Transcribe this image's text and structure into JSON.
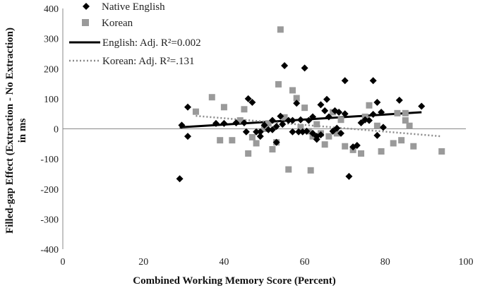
{
  "chart_data": {
    "type": "scatter",
    "title": "",
    "xlabel": "Combined Working Memory Score (Percent)",
    "ylabel_line1": "Filled-gap Effect (Extraction - No Extraction)",
    "ylabel_line2": "in ms",
    "xlim": [
      0,
      100
    ],
    "ylim": [
      -400,
      400
    ],
    "x_ticks": [
      0,
      20,
      40,
      60,
      80,
      100
    ],
    "y_ticks": [
      -400,
      -300,
      -200,
      -100,
      0,
      100,
      200,
      300,
      400
    ],
    "grid": false,
    "legend_position": "top-left",
    "series": [
      {
        "name": "Native English",
        "marker": "diamond",
        "color": "#000000",
        "points": [
          [
            29,
            -166
          ],
          [
            29.5,
            12
          ],
          [
            31,
            -25
          ],
          [
            31,
            72
          ],
          [
            38,
            18
          ],
          [
            40,
            18
          ],
          [
            43,
            20
          ],
          [
            45,
            20
          ],
          [
            45.5,
            -10
          ],
          [
            46,
            100
          ],
          [
            47,
            88
          ],
          [
            48,
            -10
          ],
          [
            49,
            -25
          ],
          [
            49,
            -10
          ],
          [
            50,
            12
          ],
          [
            51,
            -3
          ],
          [
            52,
            -3
          ],
          [
            52,
            28
          ],
          [
            53,
            -45
          ],
          [
            53,
            8
          ],
          [
            54,
            42
          ],
          [
            54.5,
            15
          ],
          [
            55,
            210
          ],
          [
            56,
            28
          ],
          [
            57,
            -10
          ],
          [
            57,
            28
          ],
          [
            58,
            85
          ],
          [
            58.5,
            -10
          ],
          [
            59,
            30
          ],
          [
            59.5,
            -10
          ],
          [
            60,
            202
          ],
          [
            60.5,
            -8
          ],
          [
            61,
            28
          ],
          [
            62,
            40
          ],
          [
            62,
            -15
          ],
          [
            63,
            -25
          ],
          [
            63,
            -35
          ],
          [
            64,
            80
          ],
          [
            64,
            -20
          ],
          [
            65,
            60
          ],
          [
            65.5,
            98
          ],
          [
            66,
            40
          ],
          [
            67,
            -8
          ],
          [
            67.5,
            60
          ],
          [
            68,
            2
          ],
          [
            68.5,
            55
          ],
          [
            69,
            -15
          ],
          [
            70,
            50
          ],
          [
            70,
            160
          ],
          [
            71,
            -158
          ],
          [
            72,
            -60
          ],
          [
            73,
            -55
          ],
          [
            74,
            20
          ],
          [
            75,
            30
          ],
          [
            76,
            28
          ],
          [
            77,
            160
          ],
          [
            77,
            48
          ],
          [
            78,
            88
          ],
          [
            78,
            -22
          ],
          [
            79,
            55
          ],
          [
            79.5,
            5
          ],
          [
            83.5,
            95
          ],
          [
            89,
            75
          ]
        ]
      },
      {
        "name": "Korean",
        "marker": "square",
        "color": "#9a9a9a",
        "points": [
          [
            33,
            57
          ],
          [
            37,
            105
          ],
          [
            39,
            -38
          ],
          [
            40,
            72
          ],
          [
            42,
            -38
          ],
          [
            44,
            28
          ],
          [
            45,
            65
          ],
          [
            46,
            -82
          ],
          [
            47,
            -28
          ],
          [
            48,
            -48
          ],
          [
            50,
            0
          ],
          [
            51,
            18
          ],
          [
            52,
            -68
          ],
          [
            53,
            -45
          ],
          [
            53.5,
            148
          ],
          [
            54,
            330
          ],
          [
            55,
            38
          ],
          [
            56,
            -135
          ],
          [
            57,
            128
          ],
          [
            58,
            102
          ],
          [
            59,
            5
          ],
          [
            60,
            70
          ],
          [
            61,
            -8
          ],
          [
            61.5,
            -138
          ],
          [
            62,
            -25
          ],
          [
            63,
            15
          ],
          [
            64,
            -15
          ],
          [
            65,
            -52
          ],
          [
            66,
            -25
          ],
          [
            67,
            55
          ],
          [
            68,
            -15
          ],
          [
            69,
            30
          ],
          [
            70,
            -58
          ],
          [
            72,
            -70
          ],
          [
            74,
            -82
          ],
          [
            75,
            40
          ],
          [
            76,
            78
          ],
          [
            78,
            10
          ],
          [
            79,
            -75
          ],
          [
            82,
            -48
          ],
          [
            83,
            52
          ],
          [
            84,
            -38
          ],
          [
            85,
            52
          ],
          [
            85,
            28
          ],
          [
            86,
            10
          ],
          [
            87,
            -58
          ],
          [
            94,
            -75
          ]
        ]
      }
    ],
    "trendlines": [
      {
        "name": "English: Adj. R²=0.002",
        "style": "solid",
        "color": "#000000",
        "x": [
          29,
          89
        ],
        "y": [
          5,
          55
        ]
      },
      {
        "name": "Korean: Adj. R²=.131",
        "style": "dotted",
        "color": "#8a8a8a",
        "x": [
          33,
          94
        ],
        "y": [
          43,
          -25
        ]
      }
    ]
  }
}
